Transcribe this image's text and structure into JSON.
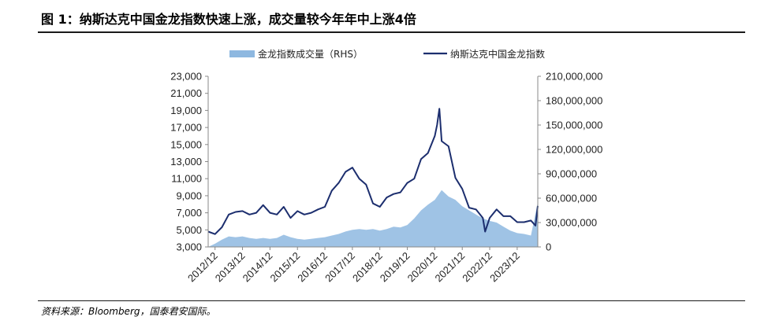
{
  "figure": {
    "title": "图 1：纳斯达克中国金龙指数快速上涨，成交量较今年年中上涨4倍",
    "source": "资料来源：Bloomberg，国泰君安国际。"
  },
  "chart_data": {
    "type": "line",
    "legend_position": "top",
    "grid": false,
    "x": {
      "tick_labels": [
        "2012/12",
        "2013/12",
        "2014/12",
        "2015/12",
        "2016/12",
        "2017/12",
        "2018/12",
        "2019/12",
        "2020/12",
        "2021/12",
        "2022/12",
        "2023/12"
      ],
      "range": [
        "2012-09",
        "2024-09"
      ]
    },
    "y_left": {
      "tick_labels": [
        "3,000",
        "5,000",
        "7,000",
        "9,000",
        "11,000",
        "13,000",
        "15,000",
        "17,000",
        "19,000",
        "21,000",
        "23,000"
      ],
      "ylim": [
        3000,
        23000
      ]
    },
    "y_right": {
      "tick_labels": [
        "0",
        "30,000,000",
        "60,000,000",
        "90,000,000",
        "120,000,000",
        "150,000,000",
        "180,000,000",
        "210,000,000"
      ],
      "ylim": [
        0,
        210000000
      ]
    },
    "series": [
      {
        "name": "金龙指数成交量（RHS）",
        "type": "area",
        "axis": "right",
        "color": "#8eb8e0",
        "points": [
          [
            "2012-09",
            0
          ],
          [
            "2012-12",
            4000000
          ],
          [
            "2013-03",
            9000000
          ],
          [
            "2013-06",
            13000000
          ],
          [
            "2013-09",
            12000000
          ],
          [
            "2013-12",
            13000000
          ],
          [
            "2014-03",
            11000000
          ],
          [
            "2014-06",
            10000000
          ],
          [
            "2014-09",
            11000000
          ],
          [
            "2014-12",
            10000000
          ],
          [
            "2015-03",
            11000000
          ],
          [
            "2015-06",
            15000000
          ],
          [
            "2015-09",
            12000000
          ],
          [
            "2015-12",
            10000000
          ],
          [
            "2016-03",
            9000000
          ],
          [
            "2016-06",
            10000000
          ],
          [
            "2016-09",
            11000000
          ],
          [
            "2016-12",
            12000000
          ],
          [
            "2017-03",
            14000000
          ],
          [
            "2017-06",
            16000000
          ],
          [
            "2017-09",
            19000000
          ],
          [
            "2017-12",
            21000000
          ],
          [
            "2018-03",
            22000000
          ],
          [
            "2018-06",
            21000000
          ],
          [
            "2018-09",
            22000000
          ],
          [
            "2018-12",
            20000000
          ],
          [
            "2019-03",
            22000000
          ],
          [
            "2019-06",
            25000000
          ],
          [
            "2019-09",
            24000000
          ],
          [
            "2019-12",
            27000000
          ],
          [
            "2020-03",
            35000000
          ],
          [
            "2020-06",
            45000000
          ],
          [
            "2020-09",
            52000000
          ],
          [
            "2020-12",
            58000000
          ],
          [
            "2021-03",
            70000000
          ],
          [
            "2021-06",
            62000000
          ],
          [
            "2021-09",
            58000000
          ],
          [
            "2021-12",
            50000000
          ],
          [
            "2022-03",
            45000000
          ],
          [
            "2022-06",
            40000000
          ],
          [
            "2022-09",
            35000000
          ],
          [
            "2022-12",
            32000000
          ],
          [
            "2023-03",
            30000000
          ],
          [
            "2023-06",
            25000000
          ],
          [
            "2023-09",
            20000000
          ],
          [
            "2023-12",
            17000000
          ],
          [
            "2024-03",
            16000000
          ],
          [
            "2024-06",
            14000000
          ],
          [
            "2024-09",
            55000000
          ],
          [
            "2024-09",
            0
          ]
        ]
      },
      {
        "name": "纳斯达克中国金龙指数",
        "type": "line",
        "axis": "left",
        "color": "#1c2e6e",
        "points": [
          [
            "2012-09",
            4800
          ],
          [
            "2012-12",
            4500
          ],
          [
            "2013-03",
            5300
          ],
          [
            "2013-06",
            6800
          ],
          [
            "2013-09",
            7100
          ],
          [
            "2013-12",
            7200
          ],
          [
            "2014-03",
            6800
          ],
          [
            "2014-06",
            7000
          ],
          [
            "2014-09",
            7900
          ],
          [
            "2014-12",
            7000
          ],
          [
            "2015-03",
            6800
          ],
          [
            "2015-06",
            7700
          ],
          [
            "2015-09",
            6400
          ],
          [
            "2015-12",
            7200
          ],
          [
            "2016-03",
            6800
          ],
          [
            "2016-06",
            7000
          ],
          [
            "2016-09",
            7400
          ],
          [
            "2016-12",
            7700
          ],
          [
            "2017-03",
            9600
          ],
          [
            "2017-06",
            10500
          ],
          [
            "2017-09",
            11800
          ],
          [
            "2017-12",
            12300
          ],
          [
            "2018-03",
            11000
          ],
          [
            "2018-06",
            10300
          ],
          [
            "2018-09",
            8100
          ],
          [
            "2018-12",
            7700
          ],
          [
            "2019-03",
            8800
          ],
          [
            "2019-06",
            9200
          ],
          [
            "2019-09",
            9400
          ],
          [
            "2019-12",
            10500
          ],
          [
            "2020-03",
            11000
          ],
          [
            "2020-06",
            13300
          ],
          [
            "2020-09",
            14000
          ],
          [
            "2020-12",
            16000
          ],
          [
            "2021-01",
            17300
          ],
          [
            "2021-02",
            19200
          ],
          [
            "2021-03",
            15400
          ],
          [
            "2021-06",
            14800
          ],
          [
            "2021-09",
            11100
          ],
          [
            "2021-12",
            9800
          ],
          [
            "2022-03",
            7600
          ],
          [
            "2022-06",
            7400
          ],
          [
            "2022-09",
            6400
          ],
          [
            "2022-10",
            4800
          ],
          [
            "2022-12",
            6400
          ],
          [
            "2023-03",
            7400
          ],
          [
            "2023-06",
            6600
          ],
          [
            "2023-09",
            6600
          ],
          [
            "2023-12",
            5900
          ],
          [
            "2024-03",
            5900
          ],
          [
            "2024-06",
            6100
          ],
          [
            "2024-08",
            5500
          ],
          [
            "2024-09",
            7800
          ]
        ]
      }
    ]
  }
}
